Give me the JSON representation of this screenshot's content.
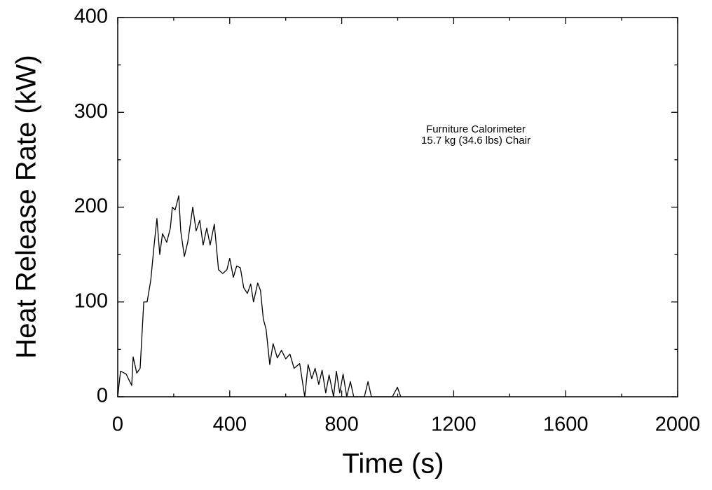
{
  "chart_data": {
    "type": "line",
    "xlabel": "Time (s)",
    "ylabel": "Heat Release Rate (kW)",
    "annotation": [
      "Furniture Calorimeter",
      "15.7 kg (34.6 lbs) Chair"
    ],
    "x": [
      0,
      10,
      30,
      43,
      50,
      55,
      68,
      80,
      93,
      105,
      118,
      130,
      140,
      150,
      160,
      175,
      188,
      195,
      205,
      218,
      225,
      238,
      250,
      268,
      280,
      293,
      305,
      318,
      330,
      345,
      360,
      375,
      390,
      400,
      413,
      425,
      438,
      450,
      463,
      475,
      485,
      500,
      510,
      520,
      530,
      543,
      555,
      570,
      585,
      600,
      615,
      630,
      650,
      668,
      680,
      693,
      705,
      718,
      730,
      743,
      755,
      771,
      781,
      793,
      805,
      818,
      831,
      843,
      881,
      894,
      906,
      981,
      999,
      1011
    ],
    "values": [
      0,
      27,
      24,
      16,
      12,
      42,
      25,
      30,
      100,
      100,
      123,
      160,
      188,
      150,
      172,
      163,
      178,
      200,
      197,
      212,
      175,
      148,
      163,
      200,
      175,
      186,
      160,
      178,
      160,
      182,
      134,
      130,
      134,
      146,
      126,
      138,
      136,
      115,
      109,
      119,
      100,
      120,
      112,
      82,
      71,
      34,
      56,
      41,
      49,
      40,
      45,
      30,
      35,
      0,
      34,
      19,
      30,
      13,
      28,
      4,
      23,
      0,
      27,
      4,
      24,
      0,
      16,
      0,
      0,
      16,
      0,
      0,
      10,
      0
    ],
    "color": "#000000",
    "xlim": [
      0,
      2000
    ],
    "xticks": [
      0,
      400,
      800,
      1200,
      1600,
      2000
    ],
    "ylim": [
      0,
      400
    ],
    "yticks": [
      0,
      100,
      200,
      300,
      400
    ]
  }
}
